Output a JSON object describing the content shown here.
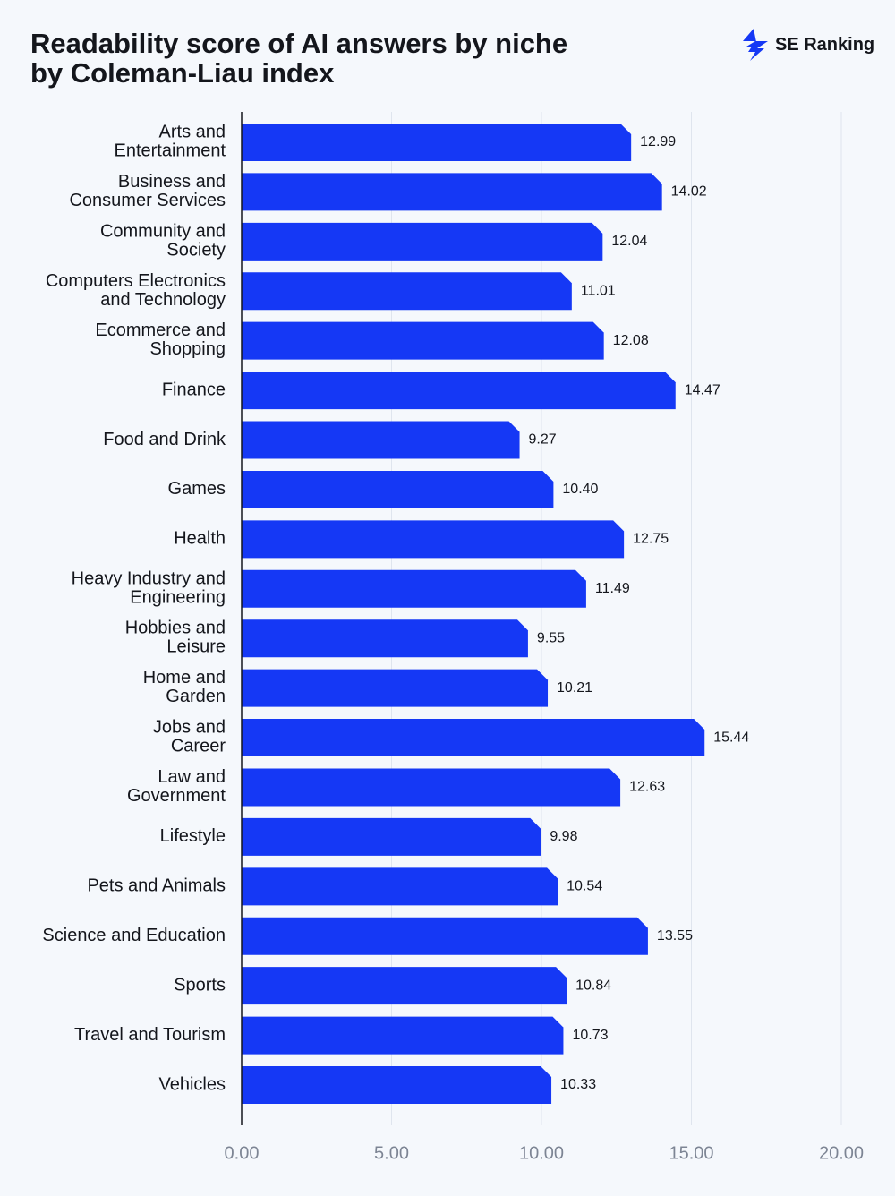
{
  "chart_data": {
    "type": "bar",
    "orientation": "horizontal",
    "title": "Readability score of AI answers by niche\nby Coleman-Liau index",
    "brand": "SE Ranking",
    "categories": [
      "Arts and\nEntertainment",
      "Business and\nConsumer Services",
      "Community and\nSociety",
      "Computers Electronics\nand Technology",
      "Ecommerce and\nShopping",
      "Finance",
      "Food and Drink",
      "Games",
      "Health",
      "Heavy Industry and\nEngineering",
      "Hobbies and\nLeisure",
      "Home and\nGarden",
      "Jobs and\nCareer",
      "Law and\nGovernment",
      "Lifestyle",
      "Pets and Animals",
      "Science and Education",
      "Sports",
      "Travel and Tourism",
      "Vehicles"
    ],
    "values": [
      12.99,
      14.02,
      12.04,
      11.01,
      12.08,
      14.47,
      9.27,
      10.4,
      12.75,
      11.49,
      9.55,
      10.21,
      15.44,
      12.63,
      9.98,
      10.54,
      13.55,
      10.84,
      10.73,
      10.33
    ],
    "value_labels": [
      "12.99",
      "14.02",
      "12.04",
      "11.01",
      "12.08",
      "14.47",
      "9.27",
      "10.40",
      "12.75",
      "11.49",
      "9.55",
      "10.21",
      "15.44",
      "12.63",
      "9.98",
      "10.54",
      "13.55",
      "10.84",
      "10.73",
      "10.33"
    ],
    "color": "#1538f5",
    "xlim": [
      0,
      20
    ],
    "xticks": [
      {
        "value": 0,
        "label": "0.00"
      },
      {
        "value": 5,
        "label": "5.00"
      },
      {
        "value": 10,
        "label": "10.00"
      },
      {
        "value": 15,
        "label": "15.00"
      },
      {
        "value": 20,
        "label": "20.00"
      }
    ],
    "grid": true
  }
}
